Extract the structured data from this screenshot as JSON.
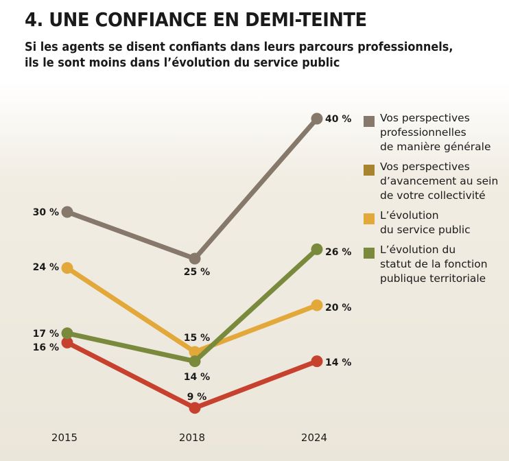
{
  "chart_data": {
    "type": "line",
    "title": "4. UNE CONFIANCE EN DEMI-TEINTE",
    "subtitle_lines": [
      "Si les agents se disent confiants dans leurs parcours professionnels,",
      "ils le sont moins dans l’évolution du service public"
    ],
    "x": [
      "2015",
      "2018",
      "2024"
    ],
    "ylim": [
      0,
      50
    ],
    "grid": false,
    "legend_position": "right",
    "series": [
      {
        "name": "Vos perspectives\nprofessionnelles\nde manière générale",
        "color": "#86786a",
        "values": [
          30,
          25,
          40
        ],
        "labels": [
          "30 %",
          "25 %",
          "40 %"
        ]
      },
      {
        "name": "Vos perspectives\nd’avancement au sein\nde votre collectivité",
        "color": "#c6412e",
        "legend_color": "#a88430",
        "values": [
          16,
          9,
          14
        ],
        "labels": [
          "16 %",
          "9 %",
          "14 %"
        ]
      },
      {
        "name": "L’évolution\ndu service public",
        "color": "#e2a83a",
        "values": [
          24,
          15,
          20
        ],
        "labels": [
          "24 %",
          "15 %",
          "20 %"
        ]
      },
      {
        "name": "L’évolution du\nstatut de la fonction\npublique territoriale",
        "color": "#7a8a3c",
        "values": [
          17,
          14,
          26
        ],
        "labels": [
          "17 %",
          "14 %",
          "26 %"
        ]
      }
    ]
  }
}
